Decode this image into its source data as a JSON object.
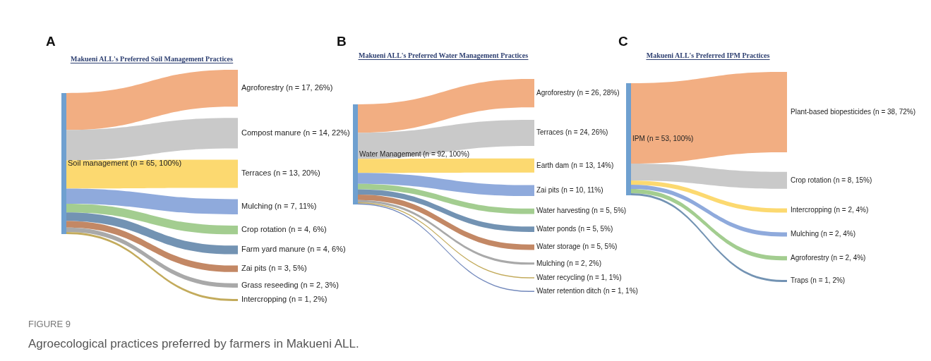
{
  "chart_data": [
    {
      "type": "other",
      "title": "Makueni ALL's Preferred Soil Management Practices",
      "categories": [
        "Agroforestry (n = 17, 26%)",
        "Compost manure (n = 14, 22%)",
        "Terraces (n = 13, 20%)",
        "Mulching (n = 7, 11%)",
        "Crop rotation (n = 4, 6%)",
        "Farm yard manure (n = 4, 6%)",
        "Zai pits (n = 3, 5%)",
        "Grass reseeding (n = 2, 3%)",
        "Intercropping (n = 1, 2%)"
      ],
      "values": [
        17,
        14,
        13,
        7,
        4,
        4,
        3,
        2,
        1
      ],
      "data_labels": true,
      "colors": [
        "#f0a06c",
        "#c0c0c0",
        "#fcd257",
        "#7b9bd6",
        "#93c47d",
        "#5b80a6",
        "#b8734a",
        "#9a9a9a",
        "#b89c40"
      ],
      "annotations": [
        "A",
        "Soil management (n = 65, 100%)",
        "FIGURE 9",
        "Agroecological practices preferred by farmers in Makueni ALL."
      ]
    },
    {
      "type": "other",
      "title": "Makueni ALL's Preferred Water Management Practices",
      "categories": [
        "Agroforestry (n = 26, 28%)",
        "Terraces (n = 24, 26%)",
        "Earth dam (n = 13, 14%)",
        "Zai pits (n = 10, 11%)",
        "Water harvesting (n = 5, 5%)",
        "Water ponds (n = 5, 5%)",
        "Water storage (n = 5, 5%)",
        "Mulching (n = 2, 2%)",
        "Water recycling (n = 1, 1%)",
        "Water retention ditch (n = 1, 1%)"
      ],
      "values": [
        26,
        24,
        13,
        10,
        5,
        5,
        5,
        2,
        1,
        1
      ],
      "data_labels": true,
      "colors": [
        "#f0a06c",
        "#c0c0c0",
        "#fcd257",
        "#7b9bd6",
        "#93c47d",
        "#5b80a6",
        "#b8734a",
        "#9a9a9a",
        "#b89c40",
        "#5a74b0"
      ],
      "annotations": [
        "B",
        "Water Management (n = 92, 100%)"
      ]
    },
    {
      "type": "other",
      "title": "Makueni ALL's Preferred IPM Practices",
      "categories": [
        "Plant-based biopesticides (n = 38, 72%)",
        "Crop rotation (n = 8, 15%)",
        "Intercropping (n = 2, 4%)",
        "Mulching (n = 2, 4%)",
        "Agroforestry (n = 2, 4%)",
        "Traps (n = 1, 2%)"
      ],
      "values": [
        38,
        8,
        2,
        2,
        2,
        1
      ],
      "data_labels": true,
      "colors": [
        "#f0a06c",
        "#c0c0c0",
        "#fcd257",
        "#7b9bd6",
        "#93c47d",
        "#5b80a6"
      ],
      "annotations": [
        "C",
        "IPM (n = 53, 100%)"
      ]
    }
  ]
}
